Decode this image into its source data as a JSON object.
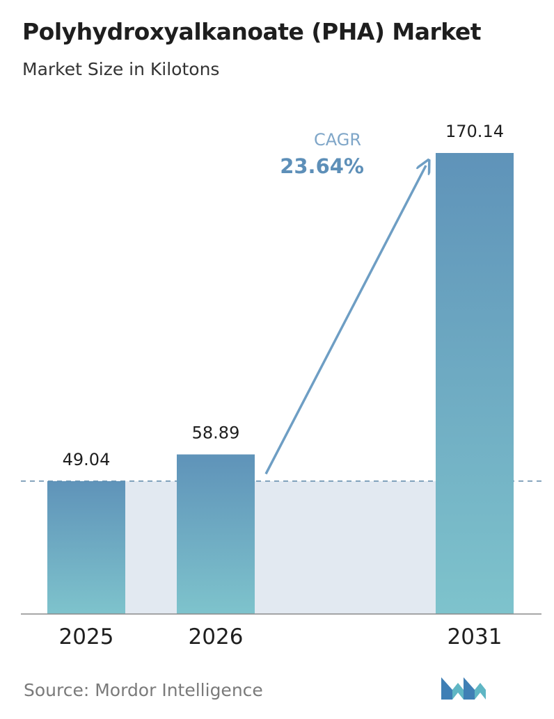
{
  "header": {
    "title": "Polyhydroxyalkanoate (PHA) Market",
    "subtitle": "Market Size in Kilotons"
  },
  "chart_data": {
    "type": "bar",
    "title": "Polyhydroxyalkanoate (PHA) Market",
    "subtitle": "Market Size in Kilotons",
    "categories": [
      "2025",
      "2026",
      "2031"
    ],
    "values": [
      49.04,
      58.89,
      170.14
    ],
    "value_labels": [
      "49.04",
      "58.89",
      "170.14"
    ],
    "ylim": [
      0,
      170.14
    ],
    "grid": false,
    "annotation": {
      "label": "CAGR",
      "value": "23.64%"
    },
    "colors": {
      "bar_top": "#5f93b9",
      "bar_bottom": "#7ec3cc",
      "arrow": "#6e9ec4",
      "band": "#e2e9f1",
      "cagr_label": "#7fa6c8",
      "cagr_value": "#5d8fb8"
    }
  },
  "footer": {
    "source": "Source:  Mordor Intelligence",
    "logo_icon": "mordor-intelligence-logo-icon"
  }
}
